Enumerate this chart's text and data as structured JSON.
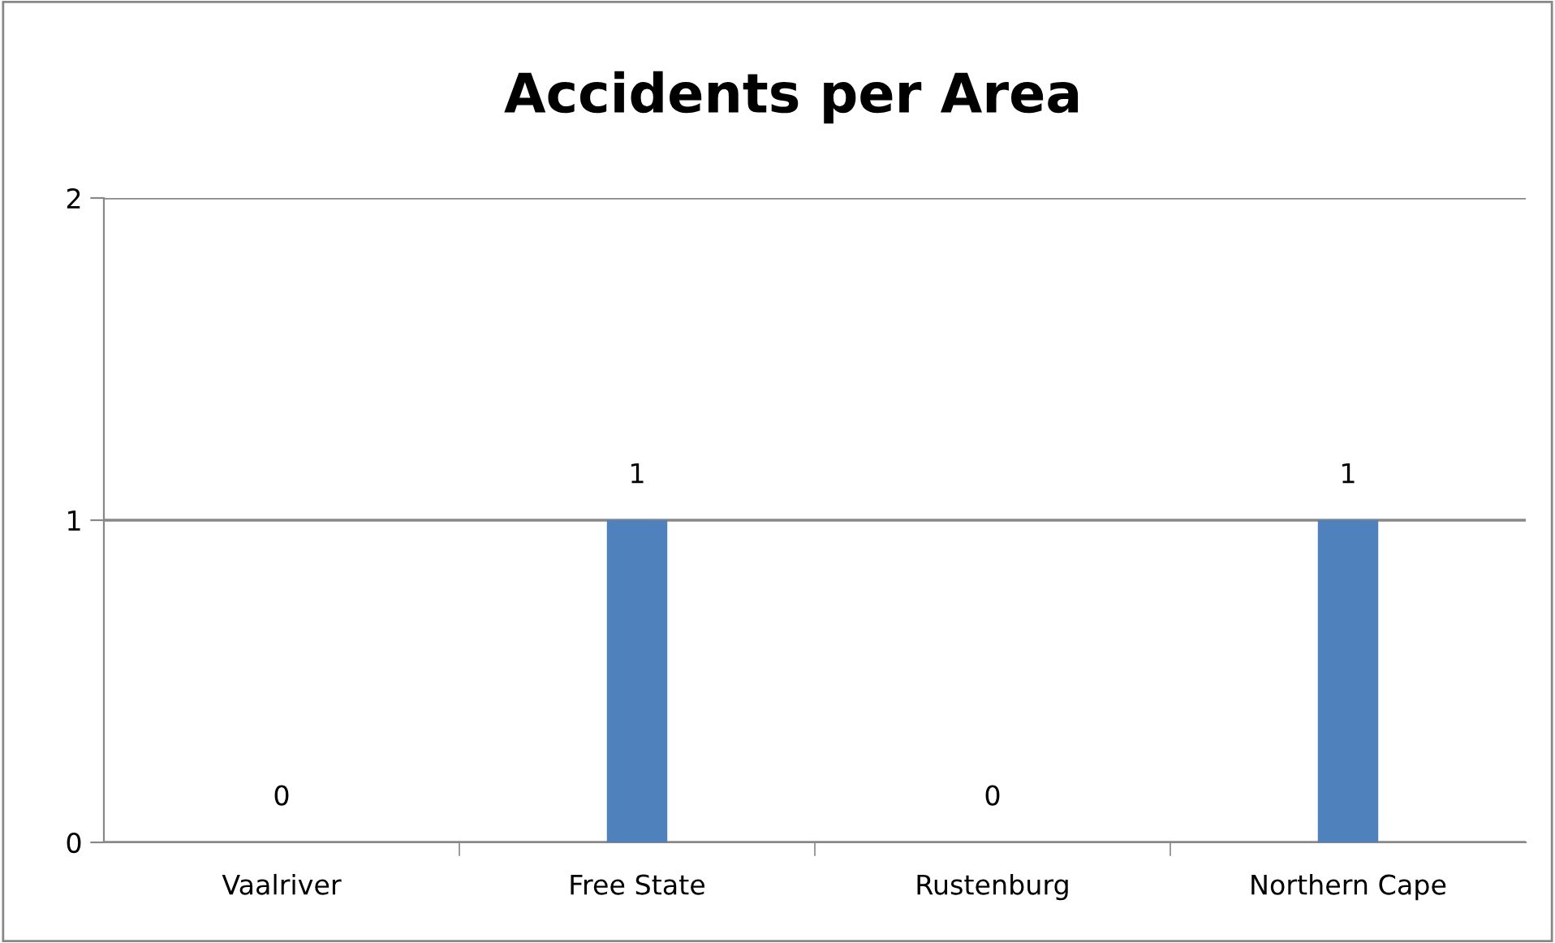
{
  "chart_data": {
    "type": "bar",
    "title": "Accidents per Area",
    "categories": [
      "Vaalriver",
      "Free State",
      "Rustenburg",
      "Northern Cape"
    ],
    "values": [
      0,
      1,
      0,
      1
    ],
    "color": "#4f81bd",
    "ylim": [
      0,
      2
    ],
    "yticks": [
      0,
      1,
      2
    ],
    "grid": "y",
    "data_labels": true
  }
}
